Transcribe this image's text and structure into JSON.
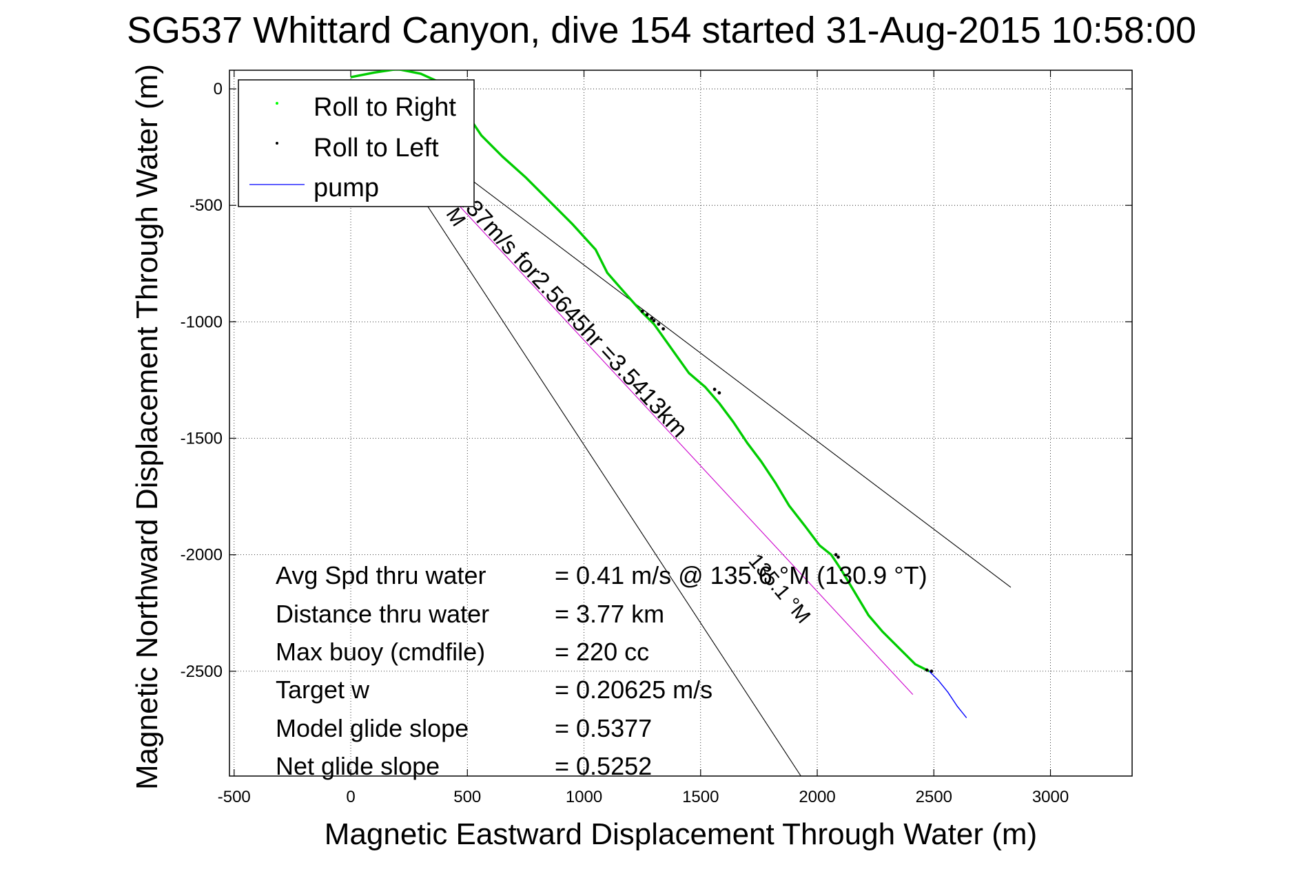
{
  "chart_data": {
    "type": "line",
    "title": "SG537 Whittard Canyon, dive 154 started 31-Aug-2015 10:58:00",
    "xlabel": "Magnetic Eastward Displacement Through Water (m)",
    "ylabel": "Magnetic Northward Displacement Through Water (m)",
    "xlim": [
      -520,
      3350
    ],
    "ylim": [
      -2950,
      80
    ],
    "x_ticks": [
      -500,
      0,
      500,
      1000,
      1500,
      2000,
      2500,
      3000
    ],
    "y_ticks": [
      0,
      -500,
      -1000,
      -1500,
      -2000,
      -2500
    ],
    "x_tick_labels": [
      "-500",
      "0",
      "500",
      "1000",
      "1500",
      "2000",
      "2500",
      "3000"
    ],
    "y_tick_labels": [
      "0",
      "-500",
      "-1000",
      "-1500",
      "-2000",
      "-2500"
    ],
    "grid": true,
    "legend_position": "top-left",
    "legend": [
      {
        "label": "Roll to Right",
        "color": "#00ff00",
        "marker": "dot"
      },
      {
        "label": "Roll to Left",
        "color": "#000000",
        "marker": "dot"
      },
      {
        "label": "pump",
        "color": "#0000ff",
        "marker": "line"
      }
    ],
    "series": [
      {
        "name": "Roll to Right",
        "color": "#00cc00",
        "x": [
          0,
          100,
          200,
          300,
          400,
          480,
          520,
          560,
          650,
          750,
          850,
          950,
          1050,
          1100,
          1170,
          1250,
          1300,
          1350,
          1400,
          1450,
          1520,
          1580,
          1640,
          1700,
          1760,
          1820,
          1880,
          1950,
          2010,
          2060,
          2100,
          2160,
          2220,
          2280,
          2350,
          2420,
          2480
        ],
        "y": [
          50,
          70,
          85,
          65,
          20,
          -60,
          -140,
          -200,
          -290,
          -380,
          -480,
          -580,
          -690,
          -790,
          -870,
          -960,
          -1010,
          -1080,
          -1150,
          -1220,
          -1280,
          -1350,
          -1430,
          -1520,
          -1600,
          -1690,
          -1790,
          -1880,
          -1960,
          -2000,
          -2060,
          -2160,
          -2260,
          -2330,
          -2400,
          -2470,
          -2500
        ]
      },
      {
        "name": "Roll to Left",
        "color": "#000000",
        "x": [
          1250,
          1270,
          1290,
          1300,
          1320,
          1340,
          1560,
          1580,
          2080,
          2090,
          2470,
          2490
        ],
        "y": [
          -955,
          -970,
          -985,
          -995,
          -1010,
          -1030,
          -1290,
          -1305,
          -2000,
          -2010,
          -2495,
          -2500
        ]
      },
      {
        "name": "pump",
        "color": "#0000ff",
        "x": [
          2480,
          2520,
          2560,
          2600,
          2640
        ],
        "y": [
          -2500,
          -2540,
          -2590,
          -2650,
          -2700
        ]
      }
    ],
    "annotations": {
      "straight_line_text": "0.37m/s for2.5645hr =3.5413km",
      "heading_label_top": "°M",
      "heading_label_mid": "135.1 °M",
      "stats": [
        {
          "label": "Avg Spd thru water",
          "value": "=  0.41 m/s @ 135.6 °M (130.9 °T)"
        },
        {
          "label": "Distance thru water",
          "value": "=  3.77 km"
        },
        {
          "label": "Max buoy (cmdfile)",
          "value": "= 220 cc"
        },
        {
          "label": "Target w",
          "value": "= 0.20625 m/s"
        },
        {
          "label": "Model glide slope",
          "value": "= 0.5377"
        },
        {
          "label": "Net glide slope",
          "value": "= 0.5252"
        }
      ]
    },
    "reference_lines": [
      {
        "name": "heading-line-left",
        "color": "#000000",
        "x": [
          0,
          1930
        ],
        "y": [
          0,
          -2950
        ]
      },
      {
        "name": "heading-line-right",
        "color": "#000000",
        "x": [
          0,
          2830
        ],
        "y": [
          0,
          -2140
        ]
      },
      {
        "name": "straight-line-track",
        "color": "#cc00cc",
        "x": [
          0,
          2410
        ],
        "y": [
          0,
          -2600
        ]
      }
    ]
  }
}
